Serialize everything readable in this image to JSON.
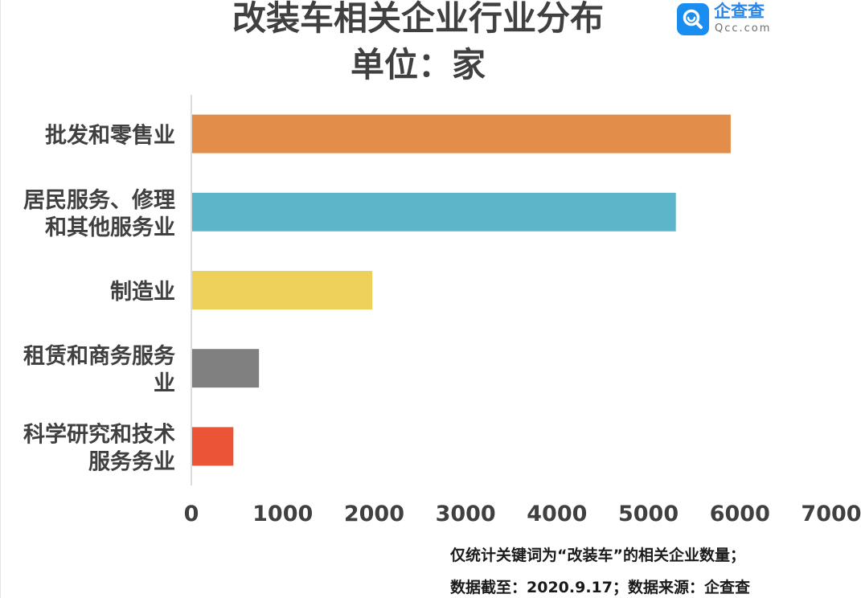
{
  "chart_data": {
    "type": "bar",
    "orientation": "horizontal",
    "title": "改装车相关企业行业分布",
    "subtitle": "单位：家",
    "categories": [
      [
        "批发和零售业"
      ],
      [
        "居民服务、修理",
        "和其他服务业"
      ],
      [
        "制造业"
      ],
      [
        "租赁和商务服务",
        "业"
      ],
      [
        "科学研究和技术",
        "服务务业"
      ]
    ],
    "values": [
      5900,
      5300,
      1980,
      740,
      460
    ],
    "colors": [
      "#E38D4A",
      "#5DB5C9",
      "#EDD15A",
      "#808080",
      "#EB5435"
    ],
    "xlim": [
      0,
      7000
    ],
    "xticks": [
      0,
      1000,
      2000,
      3000,
      4000,
      5000,
      6000,
      7000
    ],
    "grid": false,
    "legend": "none"
  },
  "logo": {
    "cn": "企查查",
    "en": "Qcc.com"
  },
  "notes": {
    "line1": "仅统计关键词为“改装车”的相关企业数量；",
    "line2": "数据截至：2020.9.17；数据来源：企查查"
  }
}
